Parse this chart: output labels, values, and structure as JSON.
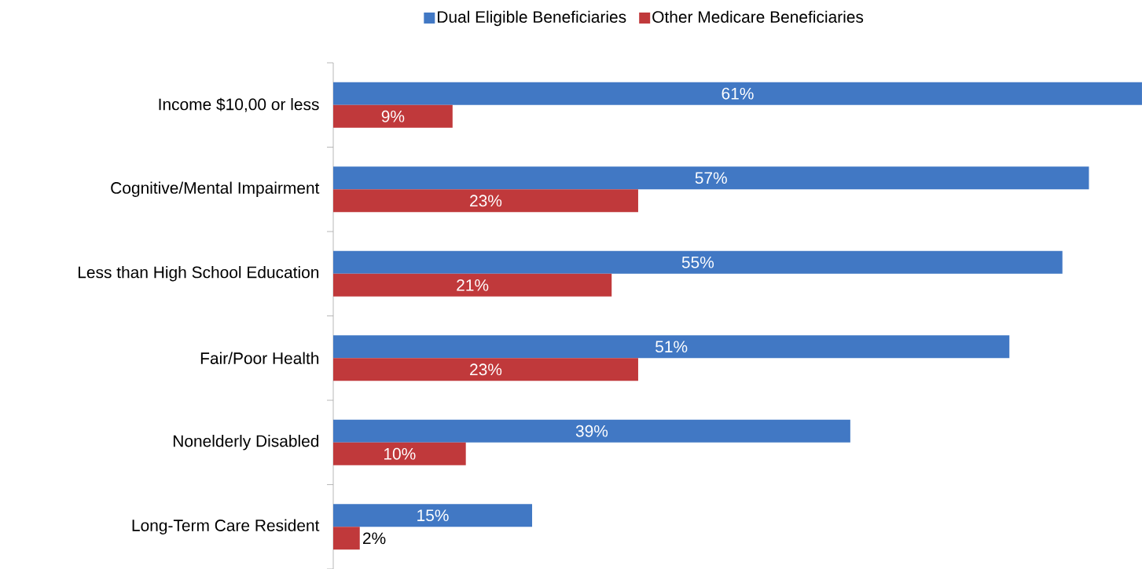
{
  "chart_data": {
    "type": "bar",
    "orientation": "horizontal",
    "categories": [
      "Income $10,00 or less",
      "Cognitive/Mental Impairment",
      "Less than High School Education",
      "Fair/Poor Health",
      "Nonelderly Disabled",
      "Long-Term Care Resident"
    ],
    "series": [
      {
        "name": "Dual Eligible Beneficiaries",
        "color": "#4178c4",
        "values": [
          61,
          57,
          55,
          51,
          39,
          15
        ],
        "value_labels": [
          "61%",
          "57%",
          "55%",
          "51%",
          "39%",
          "15%"
        ]
      },
      {
        "name": "Other Medicare Beneficiaries",
        "color": "#c0393b",
        "values": [
          9,
          23,
          21,
          23,
          10,
          2
        ],
        "value_labels": [
          "9%",
          "23%",
          "21%",
          "23%",
          "10%",
          "2%"
        ]
      }
    ],
    "legend": "top"
  }
}
